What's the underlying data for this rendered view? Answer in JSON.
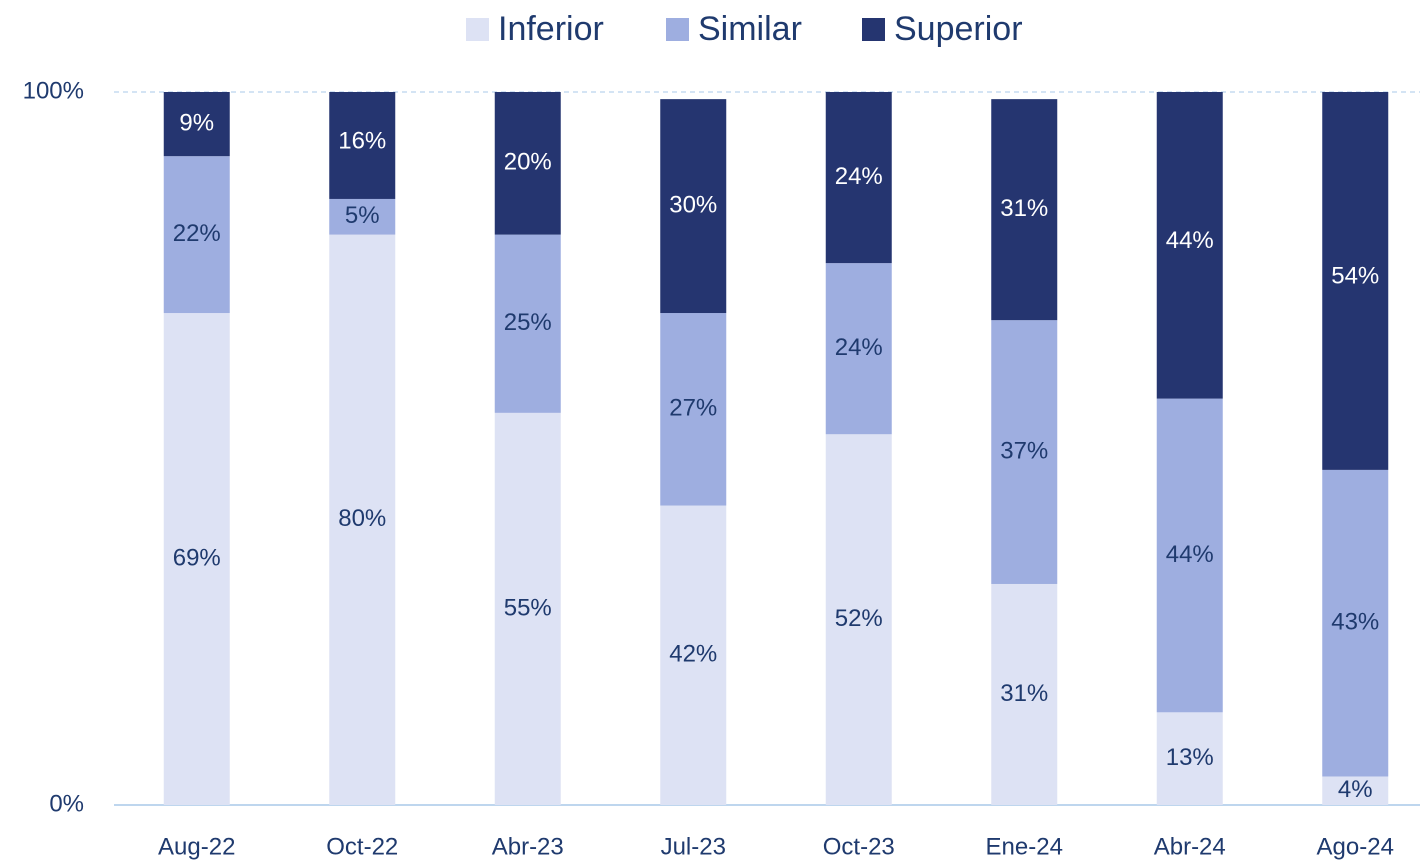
{
  "chart_data": {
    "type": "stacked_bar",
    "categories": [
      "Aug-22",
      "Oct-22",
      "Abr-23",
      "Jul-23",
      "Oct-23",
      "Ene-24",
      "Abr-24",
      "Ago-24"
    ],
    "series": [
      {
        "name": "Inferior",
        "color": "#dde2f4",
        "label_color": "#1f3a6e",
        "values": [
          69,
          80,
          55,
          42,
          52,
          31,
          13,
          4
        ],
        "value_labels": [
          "69%",
          "80%",
          "55%",
          "42%",
          "52%",
          "31%",
          "13%",
          "4%"
        ]
      },
      {
        "name": "Similar",
        "color": "#9eaee0",
        "label_color": "#1f3a6e",
        "values": [
          22,
          5,
          25,
          27,
          24,
          37,
          44,
          43
        ],
        "value_labels": [
          "22%",
          "5%",
          "25%",
          "27%",
          "24%",
          "37%",
          "44%",
          "43%"
        ]
      },
      {
        "name": "Superior",
        "color": "#253570",
        "label_color": "#ffffff",
        "values": [
          9,
          16,
          20,
          30,
          24,
          31,
          44,
          54
        ],
        "value_labels": [
          "9%",
          "16%",
          "20%",
          "30%",
          "24%",
          "31%",
          "44%",
          "54%"
        ]
      }
    ],
    "ylim": [
      0,
      100
    ],
    "yticks": [
      {
        "value": 0,
        "label": "0%"
      },
      {
        "value": 100,
        "label": "100%"
      }
    ],
    "legend": "top"
  }
}
